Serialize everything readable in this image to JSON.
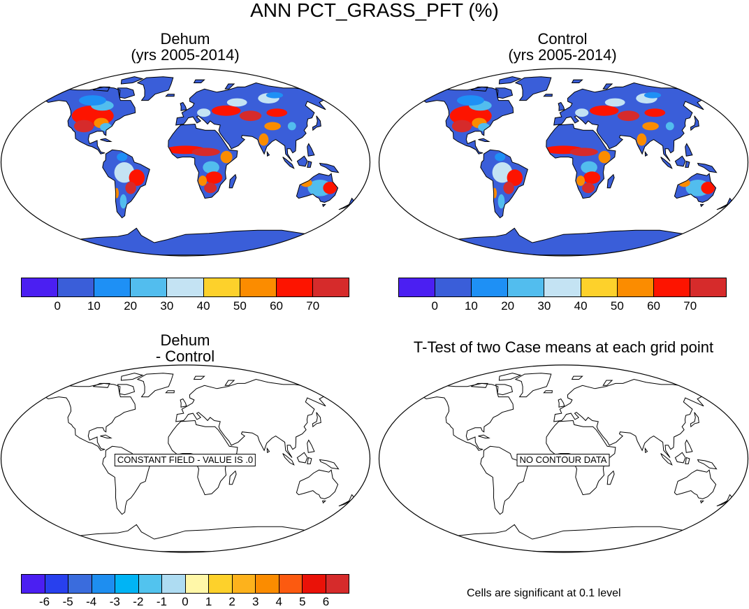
{
  "page_title": "ANN PCT_GRASS_PFT (%)",
  "panels": {
    "top_left": {
      "title_line1": "Dehum",
      "title_line2": "(yrs 2005-2014)"
    },
    "top_right": {
      "title_line1": "Control",
      "title_line2": "(yrs 2005-2014)"
    },
    "bottom_left": {
      "title_line1": "Dehum",
      "title_line2": "- Control",
      "message": "CONSTANT FIELD - VALUE IS .0"
    },
    "bottom_right": {
      "title_line1": "T-Test of two Case means at each grid point",
      "message": "NO CONTOUR DATA",
      "footer": "Cells are significant at 0.1 level"
    }
  },
  "colorbars": {
    "fields": {
      "colors": [
        "#4b1ff2",
        "#3a5ed9",
        "#1e90f5",
        "#52bdee",
        "#c4e3f3",
        "#fdd12b",
        "#fb8c00",
        "#fd1400",
        "#d62b2b"
      ],
      "labels": [
        "0",
        "10",
        "20",
        "30",
        "40",
        "50",
        "60",
        "70"
      ]
    },
    "difference": {
      "colors": [
        "#4b1ff2",
        "#2840ee",
        "#3a6cdd",
        "#1e8ef0",
        "#00b4f5",
        "#52c3ee",
        "#aedcf2",
        "#fff7a8",
        "#fdd12b",
        "#fdb21c",
        "#fb8c00",
        "#fc5a10",
        "#ea1208",
        "#d62b2b"
      ],
      "labels": [
        "-6",
        "-5",
        "-4",
        "-3",
        "-2",
        "-1",
        "0",
        "1",
        "2",
        "3",
        "4",
        "5",
        "6"
      ]
    }
  },
  "legend_colors": {
    "ocean": "#ffffff",
    "land_dry": "#3a5ed9",
    "antarctica": "#3a5ed9",
    "outline": "#000000"
  }
}
